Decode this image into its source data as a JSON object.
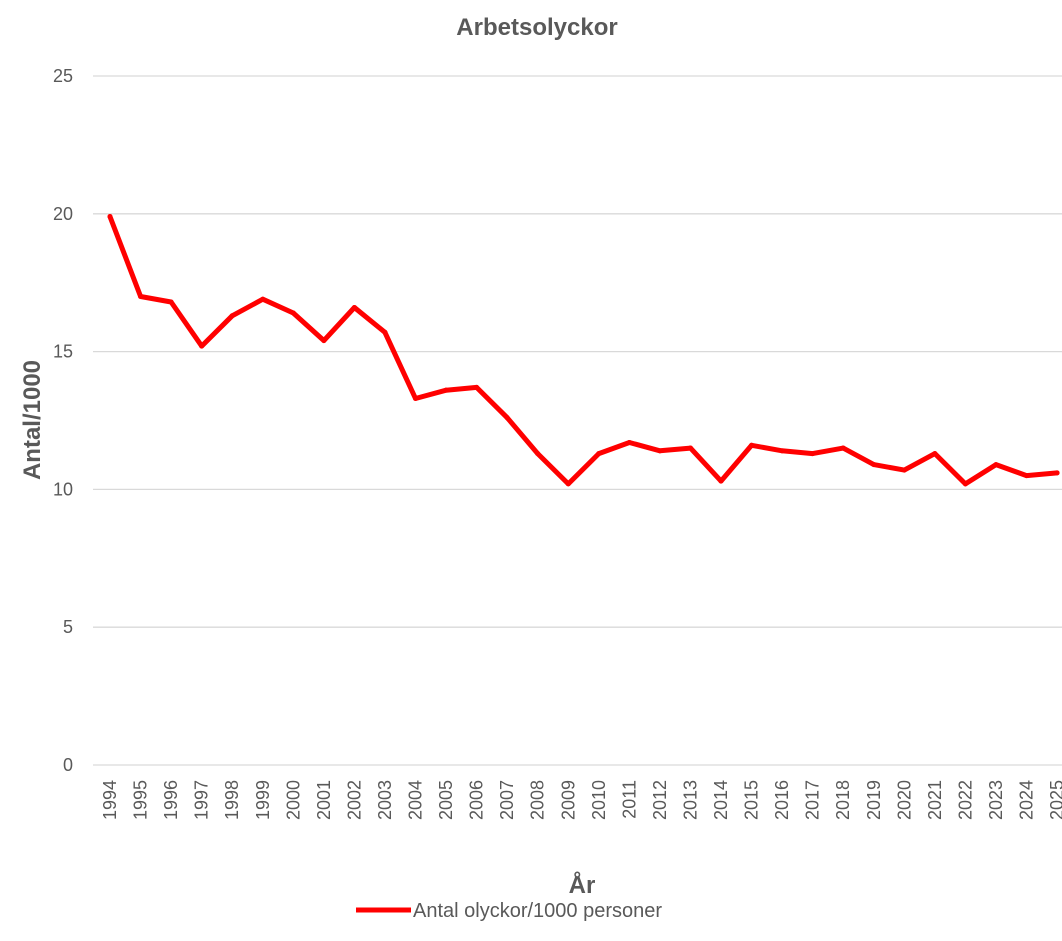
{
  "chart_data": {
    "type": "line",
    "title": "Arbetsolyckor",
    "xlabel": "År",
    "ylabel": "Antal/1000",
    "ylim": [
      0,
      25
    ],
    "yticks": [
      0,
      5,
      10,
      15,
      20,
      25
    ],
    "grid": true,
    "legend_position": "bottom",
    "categories": [
      "1994",
      "1995",
      "1996",
      "1997",
      "1998",
      "1999",
      "2000",
      "2001",
      "2002",
      "2003",
      "2004",
      "2005",
      "2006",
      "2007",
      "2008",
      "2009",
      "2010",
      "2011",
      "2012",
      "2013",
      "2014",
      "2015",
      "2016",
      "2017",
      "2018",
      "2019",
      "2020",
      "2021",
      "2022",
      "2023",
      "2024",
      "2025"
    ],
    "series": [
      {
        "name": "Antal olyckor/1000 personer",
        "color": "#ff0000",
        "values": [
          19.9,
          17.0,
          16.8,
          15.2,
          16.3,
          16.9,
          16.4,
          15.4,
          16.6,
          15.7,
          13.3,
          13.6,
          13.7,
          12.6,
          11.3,
          10.2,
          11.3,
          11.7,
          11.4,
          11.5,
          10.3,
          11.6,
          11.4,
          11.3,
          11.5,
          10.9,
          10.7,
          11.3,
          10.2,
          10.9,
          10.5,
          10.6
        ]
      }
    ]
  }
}
